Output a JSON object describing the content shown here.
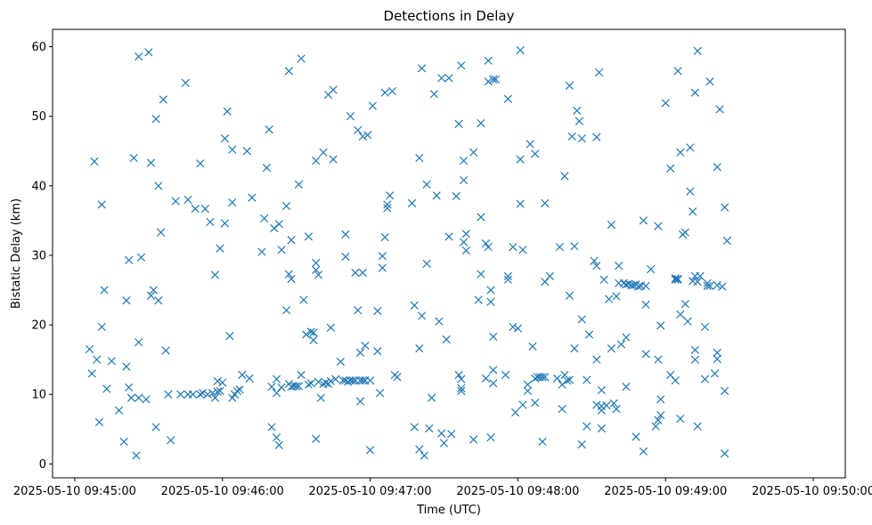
{
  "chart_data": {
    "type": "scatter",
    "title": "Detections in Delay",
    "xlabel": "Time (UTC)",
    "ylabel": "Bistatic Delay (km)",
    "marker": "x",
    "color": "#1f77b4",
    "grid": false,
    "x_unit": "seconds since 2025-05-10 09:45:00",
    "xlim": [
      -9,
      313
    ],
    "ylim": [
      -2,
      62.5
    ],
    "x_ticks": [
      0,
      60,
      120,
      180,
      240,
      300
    ],
    "x_tick_labels": [
      "2025-05-10 09:45:00",
      "2025-05-10 09:46:00",
      "2025-05-10 09:47:00",
      "2025-05-10 09:48:00",
      "2025-05-10 09:49:00",
      "2025-05-10 09:50:00"
    ],
    "y_ticks": [
      0,
      10,
      20,
      30,
      40,
      50,
      60
    ],
    "y_tick_labels": [
      "0",
      "10",
      "20",
      "30",
      "40",
      "50",
      "60"
    ],
    "points": [
      [
        6,
        16.5
      ],
      [
        7,
        13
      ],
      [
        8,
        43.5
      ],
      [
        9,
        15
      ],
      [
        10,
        6
      ],
      [
        11,
        19.7
      ],
      [
        11,
        37.3
      ],
      [
        12,
        25
      ],
      [
        13,
        10.8
      ],
      [
        15,
        14.8
      ],
      [
        18,
        7.7
      ],
      [
        20,
        3.2
      ],
      [
        21,
        14
      ],
      [
        21,
        23.5
      ],
      [
        22,
        29.3
      ],
      [
        22,
        11
      ],
      [
        23,
        9.5
      ],
      [
        24,
        44
      ],
      [
        25,
        1.2
      ],
      [
        26,
        9.5
      ],
      [
        26,
        17.5
      ],
      [
        26,
        58.6
      ],
      [
        27,
        29.7
      ],
      [
        29,
        9.3
      ],
      [
        30,
        59.2
      ],
      [
        31,
        43.3
      ],
      [
        31,
        24.2
      ],
      [
        32,
        25
      ],
      [
        33,
        5.3
      ],
      [
        33,
        49.6
      ],
      [
        34,
        40
      ],
      [
        34,
        23.5
      ],
      [
        35,
        33.3
      ],
      [
        36,
        52.4
      ],
      [
        37,
        16.3
      ],
      [
        38,
        10
      ],
      [
        39,
        3.4
      ],
      [
        41,
        37.8
      ],
      [
        43,
        10
      ],
      [
        45,
        54.8
      ],
      [
        46,
        10
      ],
      [
        46,
        38
      ],
      [
        48,
        10
      ],
      [
        49,
        36.7
      ],
      [
        51,
        10
      ],
      [
        51,
        43.2
      ],
      [
        52,
        10.2
      ],
      [
        53,
        36.7
      ],
      [
        54,
        10
      ],
      [
        55,
        34.8
      ],
      [
        56,
        10.2
      ],
      [
        57,
        9.5
      ],
      [
        57,
        27.2
      ],
      [
        58,
        11.9
      ],
      [
        58,
        10.4
      ],
      [
        59,
        10.5
      ],
      [
        59,
        31
      ],
      [
        60,
        11.7
      ],
      [
        61,
        46.8
      ],
      [
        61,
        34.6
      ],
      [
        62,
        50.7
      ],
      [
        63,
        18.4
      ],
      [
        64,
        45.2
      ],
      [
        64,
        37.6
      ],
      [
        64,
        9.5
      ],
      [
        65,
        10
      ],
      [
        66,
        10.5
      ],
      [
        67,
        10.7
      ],
      [
        68,
        12.8
      ],
      [
        70,
        45
      ],
      [
        71,
        12.3
      ],
      [
        72,
        38.3
      ],
      [
        76,
        30.5
      ],
      [
        77,
        35.3
      ],
      [
        78,
        42.6
      ],
      [
        79,
        48.1
      ],
      [
        80,
        11.1
      ],
      [
        80,
        5.3
      ],
      [
        81,
        33.9
      ],
      [
        82,
        12.2
      ],
      [
        82,
        3.8
      ],
      [
        82,
        10.2
      ],
      [
        83,
        2.7
      ],
      [
        83,
        34.5
      ],
      [
        84,
        11
      ],
      [
        84,
        30.8
      ],
      [
        86,
        22.1
      ],
      [
        86,
        37.1
      ],
      [
        87,
        11.5
      ],
      [
        87,
        27.3
      ],
      [
        87,
        56.5
      ],
      [
        88,
        26.6
      ],
      [
        88,
        32.2
      ],
      [
        88,
        11.1
      ],
      [
        89,
        11.2
      ],
      [
        90,
        11.2
      ],
      [
        91,
        11.2
      ],
      [
        91,
        40.2
      ],
      [
        92,
        58.3
      ],
      [
        92,
        12.8
      ],
      [
        93,
        23.6
      ],
      [
        94,
        18.6
      ],
      [
        95,
        11.4
      ],
      [
        95,
        32.7
      ],
      [
        96,
        19
      ],
      [
        96,
        11.6
      ],
      [
        97,
        18.9
      ],
      [
        97,
        17.8
      ],
      [
        98,
        3.6
      ],
      [
        98,
        28.9
      ],
      [
        98,
        43.6
      ],
      [
        98,
        27.9
      ],
      [
        99,
        27.2
      ],
      [
        99,
        11.8
      ],
      [
        100,
        9.5
      ],
      [
        101,
        11.5
      ],
      [
        101,
        44.8
      ],
      [
        102,
        11.7
      ],
      [
        103,
        53.1
      ],
      [
        103,
        11.5
      ],
      [
        104,
        19.6
      ],
      [
        104,
        11.9
      ],
      [
        105,
        53.8
      ],
      [
        105,
        43.8
      ],
      [
        106,
        12.2
      ],
      [
        108,
        14.7
      ],
      [
        109,
        12
      ],
      [
        110,
        12
      ],
      [
        110,
        33
      ],
      [
        110,
        29.8
      ],
      [
        111,
        11.8
      ],
      [
        112,
        12
      ],
      [
        112,
        50
      ],
      [
        113,
        12
      ],
      [
        114,
        12
      ],
      [
        114,
        27.5
      ],
      [
        115,
        22.1
      ],
      [
        115,
        48
      ],
      [
        116,
        16
      ],
      [
        116,
        12
      ],
      [
        116,
        9
      ],
      [
        117,
        12
      ],
      [
        117,
        47.1
      ],
      [
        117,
        27.5
      ],
      [
        118,
        12
      ],
      [
        118,
        17
      ],
      [
        119,
        47.3
      ],
      [
        120,
        12
      ],
      [
        120,
        2
      ],
      [
        121,
        51.5
      ],
      [
        123,
        16.2
      ],
      [
        123,
        22
      ],
      [
        124,
        10.2
      ],
      [
        125,
        28.2
      ],
      [
        125,
        29.9
      ],
      [
        126,
        32.6
      ],
      [
        126,
        53.4
      ],
      [
        127,
        37.3
      ],
      [
        127,
        36.8
      ],
      [
        128,
        38.6
      ],
      [
        129,
        53.6
      ],
      [
        130,
        12.8
      ],
      [
        131,
        12.5
      ],
      [
        137,
        37.5
      ],
      [
        138,
        22.8
      ],
      [
        138,
        5.3
      ],
      [
        140,
        44
      ],
      [
        140,
        16.6
      ],
      [
        140,
        2.1
      ],
      [
        141,
        56.9
      ],
      [
        141,
        21.3
      ],
      [
        142,
        1.2
      ],
      [
        143,
        40.2
      ],
      [
        143,
        28.8
      ],
      [
        144,
        5.1
      ],
      [
        145,
        9.5
      ],
      [
        146,
        53.2
      ],
      [
        147,
        38.6
      ],
      [
        148,
        20.5
      ],
      [
        149,
        55.5
      ],
      [
        149,
        4.4
      ],
      [
        150,
        3
      ],
      [
        151,
        17.9
      ],
      [
        152,
        32.7
      ],
      [
        152,
        55.5
      ],
      [
        153,
        4.3
      ],
      [
        155,
        38.5
      ],
      [
        156,
        12.8
      ],
      [
        156,
        48.9
      ],
      [
        157,
        57.3
      ],
      [
        157,
        12.2
      ],
      [
        157,
        10.9
      ],
      [
        157,
        10.5
      ],
      [
        158,
        43.6
      ],
      [
        158,
        31.9
      ],
      [
        158,
        40.8
      ],
      [
        159,
        30.7
      ],
      [
        159,
        33.1
      ],
      [
        162,
        44.8
      ],
      [
        162,
        3.5
      ],
      [
        164,
        23.6
      ],
      [
        165,
        49
      ],
      [
        165,
        35.5
      ],
      [
        165,
        27.3
      ],
      [
        167,
        12.3
      ],
      [
        167,
        31.7
      ],
      [
        168,
        55
      ],
      [
        168,
        58
      ],
      [
        168,
        31.2
      ],
      [
        169,
        25
      ],
      [
        169,
        23.3
      ],
      [
        169,
        3.8
      ],
      [
        170,
        55.3
      ],
      [
        170,
        18.3
      ],
      [
        170,
        13.5
      ],
      [
        170,
        11.6
      ],
      [
        171,
        55.3
      ],
      [
        175,
        12.8
      ],
      [
        176,
        52.5
      ],
      [
        176,
        27
      ],
      [
        176,
        26.5
      ],
      [
        178,
        19.7
      ],
      [
        178,
        31.2
      ],
      [
        179,
        7.4
      ],
      [
        180,
        19.5
      ],
      [
        181,
        59.5
      ],
      [
        181,
        43.8
      ],
      [
        181,
        37.4
      ],
      [
        182,
        30.8
      ],
      [
        182,
        8.5
      ],
      [
        184,
        11.4
      ],
      [
        184,
        10.5
      ],
      [
        185,
        46
      ],
      [
        186,
        16.9
      ],
      [
        187,
        44.6
      ],
      [
        187,
        12.3
      ],
      [
        187,
        8.8
      ],
      [
        188,
        12.5
      ],
      [
        189,
        12.5
      ],
      [
        190,
        3.2
      ],
      [
        190,
        12.5
      ],
      [
        191,
        37.5
      ],
      [
        191,
        26.2
      ],
      [
        191,
        12.5
      ],
      [
        193,
        27
      ],
      [
        196,
        12.3
      ],
      [
        197,
        31.2
      ],
      [
        198,
        11.4
      ],
      [
        198,
        7.9
      ],
      [
        199,
        41.4
      ],
      [
        199,
        12.8
      ],
      [
        200,
        12
      ],
      [
        201,
        24.2
      ],
      [
        201,
        54.4
      ],
      [
        201,
        12.1
      ],
      [
        202,
        47.1
      ],
      [
        203,
        16.6
      ],
      [
        203,
        31.3
      ],
      [
        204,
        50.8
      ],
      [
        205,
        49.3
      ],
      [
        206,
        20.8
      ],
      [
        206,
        2.8
      ],
      [
        206,
        46.8
      ],
      [
        208,
        5.4
      ],
      [
        208,
        12.1
      ],
      [
        209,
        18.6
      ],
      [
        211,
        29.2
      ],
      [
        212,
        28.5
      ],
      [
        212,
        15
      ],
      [
        212,
        47
      ],
      [
        212,
        8.5
      ],
      [
        213,
        56.3
      ],
      [
        214,
        10.6
      ],
      [
        214,
        8.3
      ],
      [
        214,
        7.7
      ],
      [
        214,
        5.1
      ],
      [
        215,
        26.5
      ],
      [
        216,
        8.4
      ],
      [
        217,
        23.7
      ],
      [
        218,
        34.4
      ],
      [
        218,
        16.6
      ],
      [
        219,
        8.7
      ],
      [
        220,
        24.1
      ],
      [
        220,
        7.9
      ],
      [
        221,
        26
      ],
      [
        221,
        28.5
      ],
      [
        222,
        17.2
      ],
      [
        223,
        26
      ],
      [
        224,
        18.2
      ],
      [
        224,
        11.1
      ],
      [
        224,
        25.8
      ],
      [
        225,
        25.9
      ],
      [
        226,
        25.7
      ],
      [
        227,
        25.7
      ],
      [
        228,
        3.9
      ],
      [
        228,
        25.8
      ],
      [
        229,
        25.5
      ],
      [
        230,
        25.6
      ],
      [
        231,
        35
      ],
      [
        231,
        1.8
      ],
      [
        232,
        25.6
      ],
      [
        232,
        15.8
      ],
      [
        232,
        22.9
      ],
      [
        234,
        28
      ],
      [
        236,
        5.4
      ],
      [
        237,
        34.2
      ],
      [
        237,
        6.3
      ],
      [
        237,
        15
      ],
      [
        238,
        19.9
      ],
      [
        238,
        9.3
      ],
      [
        238,
        7
      ],
      [
        240,
        51.9
      ],
      [
        242,
        12.8
      ],
      [
        242,
        42.5
      ],
      [
        244,
        26.7
      ],
      [
        244,
        26.5
      ],
      [
        244,
        12
      ],
      [
        245,
        26.5
      ],
      [
        245,
        26.6
      ],
      [
        245,
        56.5
      ],
      [
        246,
        21.5
      ],
      [
        246,
        44.8
      ],
      [
        246,
        6.5
      ],
      [
        247,
        33
      ],
      [
        248,
        33.3
      ],
      [
        248,
        23
      ],
      [
        249,
        20.5
      ],
      [
        250,
        45.5
      ],
      [
        250,
        39.2
      ],
      [
        251,
        36.3
      ],
      [
        251,
        26.3
      ],
      [
        252,
        15
      ],
      [
        252,
        53.4
      ],
      [
        252,
        27
      ],
      [
        252,
        16.4
      ],
      [
        253,
        59.4
      ],
      [
        253,
        5.4
      ],
      [
        253,
        26.2
      ],
      [
        254,
        27
      ],
      [
        256,
        12.2
      ],
      [
        256,
        19.7
      ],
      [
        257,
        26
      ],
      [
        257,
        25.6
      ],
      [
        258,
        25.6
      ],
      [
        258,
        55
      ],
      [
        260,
        13
      ],
      [
        261,
        25.7
      ],
      [
        261,
        16
      ],
      [
        261,
        42.7
      ],
      [
        261,
        15.1
      ],
      [
        262,
        51
      ],
      [
        263,
        25.5
      ],
      [
        264,
        10.5
      ],
      [
        264,
        36.9
      ],
      [
        264,
        1.5
      ],
      [
        265,
        32.1
      ]
    ]
  }
}
